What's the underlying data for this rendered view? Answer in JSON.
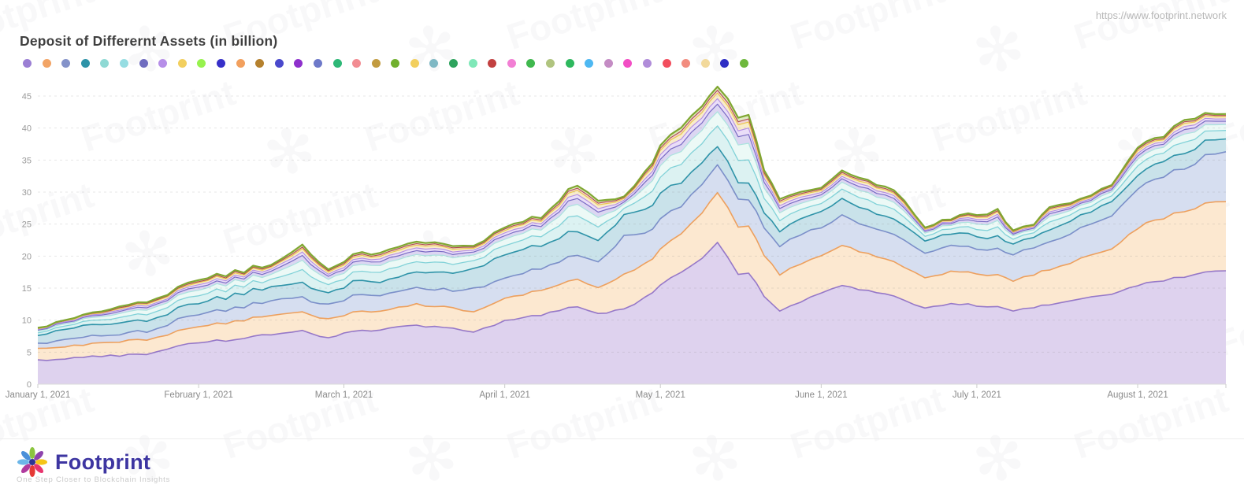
{
  "page": {
    "source_url": "https://www.footprint.network",
    "watermark_text": "Footprint",
    "footer": {
      "brand": "Footprint",
      "brand_color": "#3d35a1",
      "tagline": "One Step Closer to Blockchain Insights",
      "logo_petal_colors": [
        "#8bc53f",
        "#8e44ad",
        "#f5c518",
        "#e8356e",
        "#e53935",
        "#b03a9e",
        "#6cb6e8",
        "#4a90d9"
      ],
      "logo_center_color": "#2d3494"
    }
  },
  "chart_data": {
    "type": "area",
    "stacked": true,
    "title": "Deposit of Differernt Assets (in billion)",
    "grid": "dashed-horizontal",
    "legend_position": "top",
    "ylim": [
      0,
      45
    ],
    "y_ticks": [
      0,
      5,
      10,
      15,
      20,
      25,
      30,
      35,
      40,
      45
    ],
    "x_ticks": {
      "days": [
        0,
        31,
        59,
        90,
        120,
        151,
        181,
        212
      ],
      "labels": [
        "January 1, 2021",
        "February 1, 2021",
        "March 1, 2021",
        "April 1, 2021",
        "May 1, 2021",
        "June 1, 2021",
        "July 1, 2021",
        "August 1, 2021"
      ],
      "end_tick_day": 229
    },
    "x_range_days": [
      0,
      229
    ],
    "legend_dot_colors": [
      "#9b7fd4",
      "#f2a466",
      "#8492c9",
      "#2e93a8",
      "#8fd9d4",
      "#96dde2",
      "#6f6cbf",
      "#b68ee8",
      "#f2cf5e",
      "#97f24e",
      "#3730c9",
      "#f2a05e",
      "#b5812e",
      "#4a49cc",
      "#8e30cc",
      "#6e79c9",
      "#2eb877",
      "#f28c92",
      "#c29b40",
      "#71b02e",
      "#f2cf5e",
      "#7fb8c4",
      "#2ea35e",
      "#7fe8b8",
      "#c24040",
      "#f27fd4",
      "#40b84e",
      "#b0c47f",
      "#2eb85e",
      "#4eb8f2",
      "#c48cc4",
      "#f24ec4",
      "#b08cd9",
      "#f24e5e",
      "#f28c7f",
      "#f2d99b",
      "#2e2ec4",
      "#6eb83d"
    ],
    "days": [
      0,
      7,
      14,
      21,
      31,
      38,
      45,
      51,
      56,
      59,
      66,
      73,
      80,
      84,
      90,
      97,
      104,
      108,
      113,
      117,
      120,
      124,
      128,
      131,
      135,
      137,
      140,
      143,
      147,
      151,
      155,
      160,
      165,
      171,
      176,
      181,
      185,
      188,
      192,
      195,
      201,
      207,
      212,
      217,
      221,
      225,
      229
    ],
    "series": [
      {
        "name": "asset-lavender",
        "stroke": "#9678c8",
        "fill": "#ded2ee",
        "stroke_width": 1.6,
        "values": [
          3.8,
          4.1,
          4.4,
          4.8,
          6.5,
          7.0,
          7.8,
          8.3,
          7.2,
          8.0,
          8.6,
          9.2,
          8.6,
          8.0,
          9.8,
          10.8,
          12.2,
          11.0,
          11.7,
          13.5,
          15.4,
          17.5,
          19.5,
          22.3,
          17.0,
          17.5,
          13.8,
          11.5,
          12.8,
          14.2,
          15.4,
          14.6,
          13.8,
          11.8,
          12.6,
          12.3,
          12.0,
          11.5,
          12.0,
          12.5,
          13.2,
          14.0,
          15.5,
          16.2,
          16.8,
          17.4,
          17.7
        ]
      },
      {
        "name": "asset-peach",
        "stroke": "#eda05e",
        "fill": "#fce8d0",
        "stroke_width": 1.6,
        "values": [
          1.8,
          1.9,
          2.1,
          2.2,
          2.5,
          2.8,
          3.0,
          3.0,
          2.8,
          2.8,
          3.0,
          3.2,
          3.2,
          3.2,
          3.5,
          3.8,
          4.2,
          4.0,
          5.3,
          5.2,
          5.6,
          6.0,
          7.0,
          7.8,
          7.5,
          7.3,
          6.5,
          5.8,
          5.8,
          6.0,
          6.2,
          5.8,
          5.4,
          4.7,
          4.9,
          5.0,
          4.9,
          4.8,
          5.2,
          5.5,
          6.2,
          7.0,
          9.0,
          9.8,
          10.2,
          10.6,
          10.8
        ]
      },
      {
        "name": "asset-periwinkle",
        "stroke": "#7b8fc9",
        "fill": "#d6def0",
        "stroke_width": 1.6,
        "values": [
          0.8,
          1.1,
          1.2,
          1.3,
          2.0,
          2.1,
          2.3,
          2.2,
          2.2,
          2.5,
          2.5,
          2.6,
          2.7,
          3.6,
          3.1,
          3.4,
          3.8,
          4.0,
          5.9,
          4.8,
          4.6,
          4.4,
          4.4,
          4.5,
          4.3,
          4.2,
          4.3,
          4.4,
          4.4,
          4.5,
          4.6,
          4.4,
          4.2,
          4.0,
          4.0,
          4.0,
          4.0,
          4.0,
          4.2,
          4.3,
          4.8,
          5.3,
          6.0,
          6.6,
          6.7,
          7.4,
          7.8
        ]
      },
      {
        "name": "asset-teal",
        "stroke": "#2e93a8",
        "fill": "#c9e2ea",
        "stroke_width": 1.6,
        "values": [
          1.2,
          1.7,
          1.9,
          1.8,
          1.8,
          2.0,
          2.1,
          2.3,
          1.8,
          2.1,
          2.2,
          2.5,
          2.8,
          3.2,
          3.6,
          3.6,
          3.8,
          3.3,
          3.3,
          3.6,
          4.0,
          3.8,
          3.3,
          3.0,
          2.6,
          2.7,
          2.4,
          2.4,
          2.4,
          2.5,
          2.6,
          2.5,
          2.5,
          1.8,
          1.9,
          1.9,
          1.8,
          1.7,
          1.8,
          1.9,
          2.0,
          2.1,
          2.3,
          2.3,
          2.3,
          2.1,
          2.0
        ]
      }
    ],
    "top_bands": {
      "remainder_values": [
        1.2,
        1.5,
        2.4,
        2.9,
        3.5,
        3.6,
        3.4,
        5.9,
        3.6,
        3.9,
        4.6,
        4.8,
        4.2,
        3.7,
        4.3,
        4.4,
        7.3,
        6.2,
        2.7,
        5.9,
        7.4,
        8.6,
        8.8,
        9.4,
        10.2,
        10.7,
        6.6,
        5.1,
        4.1,
        3.7,
        4.4,
        4.6,
        4.6,
        2.1,
        2.4,
        3.4,
        4.1,
        2.1,
        2.1,
        3.6,
        2.5,
        2.7,
        4.5,
        3.9,
        5.3,
        4.3,
        3.9
      ],
      "bands": [
        {
          "name": "asset-pale-cyan-1",
          "fraction": 0.34,
          "stroke": "#82d2d8",
          "fill": "#dcf2f2",
          "stroke_width": 1.3
        },
        {
          "name": "asset-pale-cyan-2",
          "fraction": 0.24,
          "stroke": "#abe3de",
          "fill": "#ecf9f6",
          "stroke_width": 1.2
        },
        {
          "name": "asset-thin-purple",
          "fraction": 0.13,
          "stroke": "#7a6cc4",
          "fill": "#dcd6f2",
          "stroke_width": 1.2
        },
        {
          "name": "asset-thin-violet",
          "fraction": 0.09,
          "stroke": "#b48ee6",
          "fill": "#eadef8",
          "stroke_width": 1.1
        },
        {
          "name": "asset-thin-yellow",
          "fraction": 0.09,
          "stroke": "#ecc850",
          "fill": "#f8ecca",
          "stroke_width": 1.2
        },
        {
          "name": "asset-thin-red",
          "fraction": 0.05,
          "stroke": "#b04a50",
          "fill": "#f0d4d6",
          "stroke_width": 1.1
        },
        {
          "name": "asset-top-green",
          "fraction": 0.06,
          "stroke": "#80a732",
          "fill": "#dfeac0",
          "stroke_width": 2.2
        }
      ]
    }
  }
}
